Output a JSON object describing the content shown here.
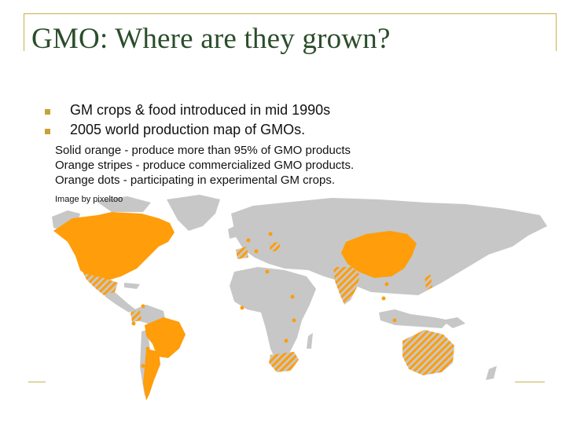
{
  "slide": {
    "title": "GMO: Where are they grown?",
    "bullets": [
      "GM crops & food introduced in mid 1990s",
      "2005 world production map of GMOs."
    ],
    "sub_lines": [
      "Solid orange - produce more than 95% of GMO products",
      "Orange stripes - produce commercialized GMO products.",
      "Orange dots - participating in experimental GM crops."
    ],
    "credit": "Image by pixeltoo"
  },
  "colors": {
    "accent": "#c8b24a",
    "title": "#2b4d2b",
    "land": "#c7c7c7",
    "gmo_orange": "#ff9d0a"
  }
}
